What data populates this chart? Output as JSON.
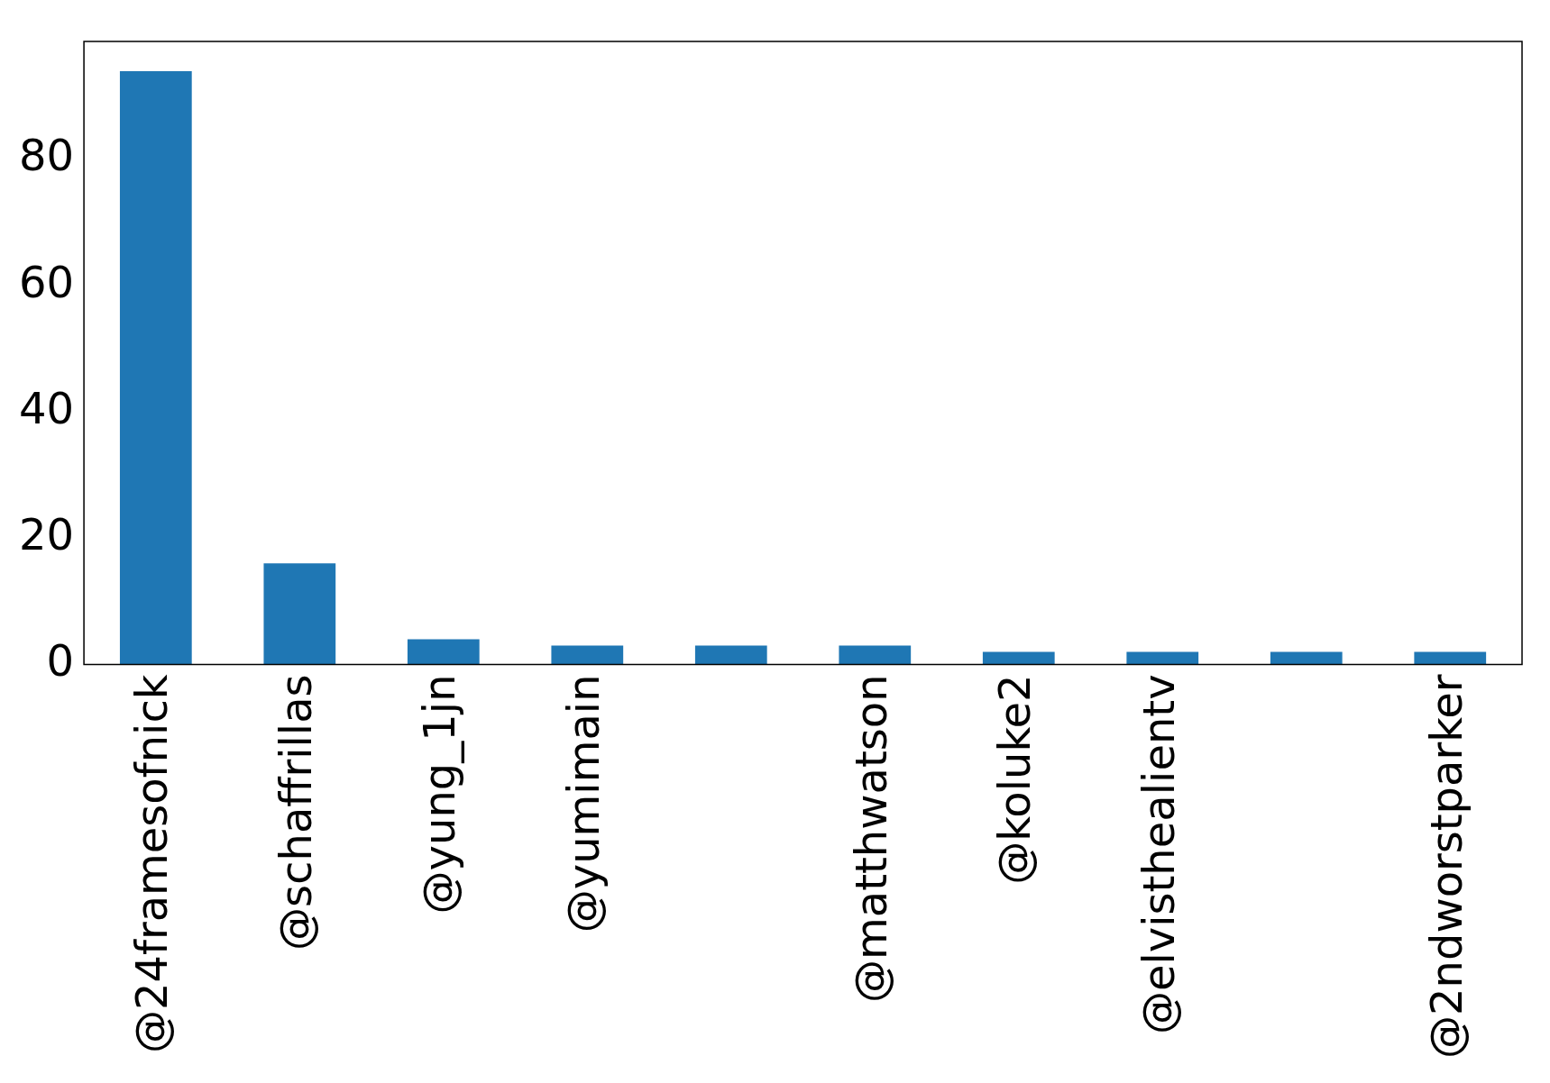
{
  "chart_data": {
    "type": "bar",
    "categories": [
      "@24framesofnick",
      "@schaffrillas",
      "@yung_1jn",
      "@yumimain",
      null,
      "@matthwatson",
      "@koluke2",
      "@elvisthealientv",
      null,
      "@2ndworstparker"
    ],
    "values": [
      94,
      16,
      4,
      3,
      3,
      3,
      2,
      2,
      2,
      2
    ],
    "color": "#1f77b4",
    "ylim": [
      0,
      98.7
    ],
    "yticks": [
      0,
      20,
      40,
      60,
      80
    ],
    "grid": false,
    "legend": false
  }
}
